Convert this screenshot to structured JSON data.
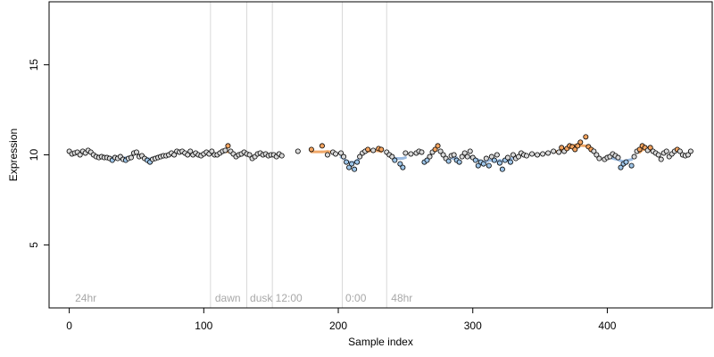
{
  "chart_data": {
    "type": "scatter",
    "title": "",
    "xlabel": "Sample index",
    "ylabel": "Expression",
    "xlim": [
      -15,
      478
    ],
    "ylim": [
      1.5,
      18.5
    ],
    "xticks": [
      0,
      100,
      200,
      300,
      400
    ],
    "yticks": [
      5,
      10,
      15
    ],
    "grid": false,
    "colors": {
      "point_fill_default": "#d9d9d9",
      "point_fill_high": "#f4a460",
      "point_fill_low": "#9ec5e8",
      "point_stroke": "#000000",
      "smooth_high": "#f0a868",
      "smooth_low": "#9bbbe0",
      "vline": "#d9d9d9",
      "annotation": "#a8a8a8"
    },
    "vertical_lines": [
      105,
      132,
      151,
      203,
      236
    ],
    "annotations": [
      {
        "x": 3,
        "text": "24hr"
      },
      {
        "x": 107,
        "text": "dawn"
      },
      {
        "x": 133,
        "text": "dusk"
      },
      {
        "x": 152,
        "text": "12:00"
      },
      {
        "x": 204,
        "text": "0:00"
      },
      {
        "x": 238,
        "text": "48hr"
      }
    ],
    "series": [
      {
        "values": [
          10.2,
          10.05,
          10.1,
          10.15,
          10.0,
          10.2,
          10.1,
          10.25,
          10.15,
          10.0,
          9.9,
          9.85,
          9.9,
          9.85,
          9.85,
          9.8,
          9.7,
          9.85,
          9.8,
          9.9,
          9.75,
          9.7,
          9.8,
          9.85,
          10.1,
          10.15,
          9.9,
          9.95,
          9.8,
          9.7,
          9.6,
          9.75,
          9.8,
          9.85,
          9.9,
          9.95,
          9.95,
          10.0,
          10.1,
          10.0,
          10.2,
          10.15,
          10.2,
          10.1,
          10.0,
          10.2,
          10.0,
          10.1,
          10.0,
          9.95,
          10.05,
          10.15,
          10.05,
          10.2,
          10.0,
          10.0,
          10.1,
          10.2,
          10.25,
          10.5,
          10.2,
          10.05,
          9.9,
          10.0,
          10.05,
          10.15,
          10.05,
          10.0,
          9.8,
          9.9,
          10.05,
          10.1,
          10.0,
          10.05,
          9.95,
          10.0,
          10.0,
          9.9,
          10.05,
          9.95,
          10.2,
          10.3,
          10.5,
          10.0,
          10.15,
          10.05,
          10.1,
          9.9,
          9.6,
          9.3,
          9.5,
          9.2,
          9.6,
          9.9,
          10.1,
          10.2,
          10.3,
          10.25,
          10.35,
          10.3,
          10.15,
          10.0,
          9.9,
          9.7,
          9.5,
          9.3,
          10.1,
          10.05,
          10.1,
          10.2,
          10.15,
          9.6,
          9.7,
          9.9,
          10.15,
          10.3,
          10.5,
          10.2,
          10.0,
          9.8,
          9.65,
          9.95,
          10.0,
          9.7,
          9.6,
          9.9,
          10.1,
          9.9,
          10.2,
          9.85,
          9.7,
          9.4,
          9.6,
          9.5,
          9.8,
          9.4,
          9.9,
          9.7,
          10.0,
          9.55,
          9.2,
          9.7,
          9.85,
          9.6,
          10.0,
          9.8,
          9.9,
          10.1,
          10.0,
          9.95,
          10.05,
          10.0,
          10.05,
          10.1,
          10.2,
          10.15,
          10.4,
          10.2,
          10.35,
          10.5,
          10.45,
          10.3,
          10.5,
          10.7,
          11.0,
          10.45,
          10.3,
          10.2,
          10.0,
          9.8,
          9.75,
          9.85,
          9.9,
          10.05,
          9.95,
          9.85,
          9.3,
          9.5,
          9.6,
          9.4,
          9.9,
          10.2,
          10.3,
          10.5,
          10.4,
          10.25,
          10.4,
          10.2,
          10.1,
          10.0,
          9.75,
          10.1,
          10.2,
          9.9,
          10.05,
          10.2,
          10.3,
          10.2,
          10.0,
          9.95,
          10.0,
          10.2
        ],
        "x": [
          0,
          2,
          4,
          6,
          8,
          10,
          12,
          14,
          16,
          18,
          20,
          22,
          24,
          26,
          28,
          30,
          32,
          34,
          36,
          38,
          40,
          42,
          44,
          46,
          48,
          50,
          52,
          54,
          56,
          58,
          60,
          62,
          64,
          66,
          68,
          70,
          72,
          74,
          76,
          78,
          80,
          82,
          84,
          86,
          88,
          90,
          92,
          94,
          96,
          98,
          100,
          102,
          104,
          106,
          108,
          110,
          112,
          114,
          116,
          118,
          120,
          122,
          124,
          126,
          128,
          130,
          132,
          134,
          136,
          138,
          140,
          142,
          144,
          146,
          148,
          150,
          152,
          154,
          156,
          158,
          170,
          180,
          188,
          192,
          196,
          198,
          202,
          204,
          206,
          208,
          210,
          212,
          214,
          216,
          218,
          220,
          222,
          226,
          230,
          232,
          236,
          238,
          240,
          242,
          246,
          248,
          250,
          254,
          258,
          260,
          262,
          264,
          266,
          268,
          270,
          272,
          274,
          276,
          278,
          280,
          282,
          284,
          286,
          288,
          290,
          292,
          294,
          296,
          298,
          300,
          302,
          304,
          306,
          308,
          310,
          312,
          314,
          316,
          318,
          320,
          322,
          324,
          326,
          328,
          330,
          332,
          334,
          336,
          338,
          340,
          344,
          348,
          352,
          356,
          360,
          364,
          366,
          368,
          370,
          372,
          374,
          376,
          378,
          380,
          384,
          386,
          388,
          390,
          392,
          394,
          398,
          400,
          402,
          404,
          406,
          408,
          410,
          412,
          414,
          418,
          420,
          422,
          424,
          426,
          428,
          430,
          432,
          434,
          436,
          438,
          440,
          442,
          444,
          446,
          448,
          450,
          452,
          454,
          456,
          458,
          460,
          462
        ]
      }
    ]
  }
}
